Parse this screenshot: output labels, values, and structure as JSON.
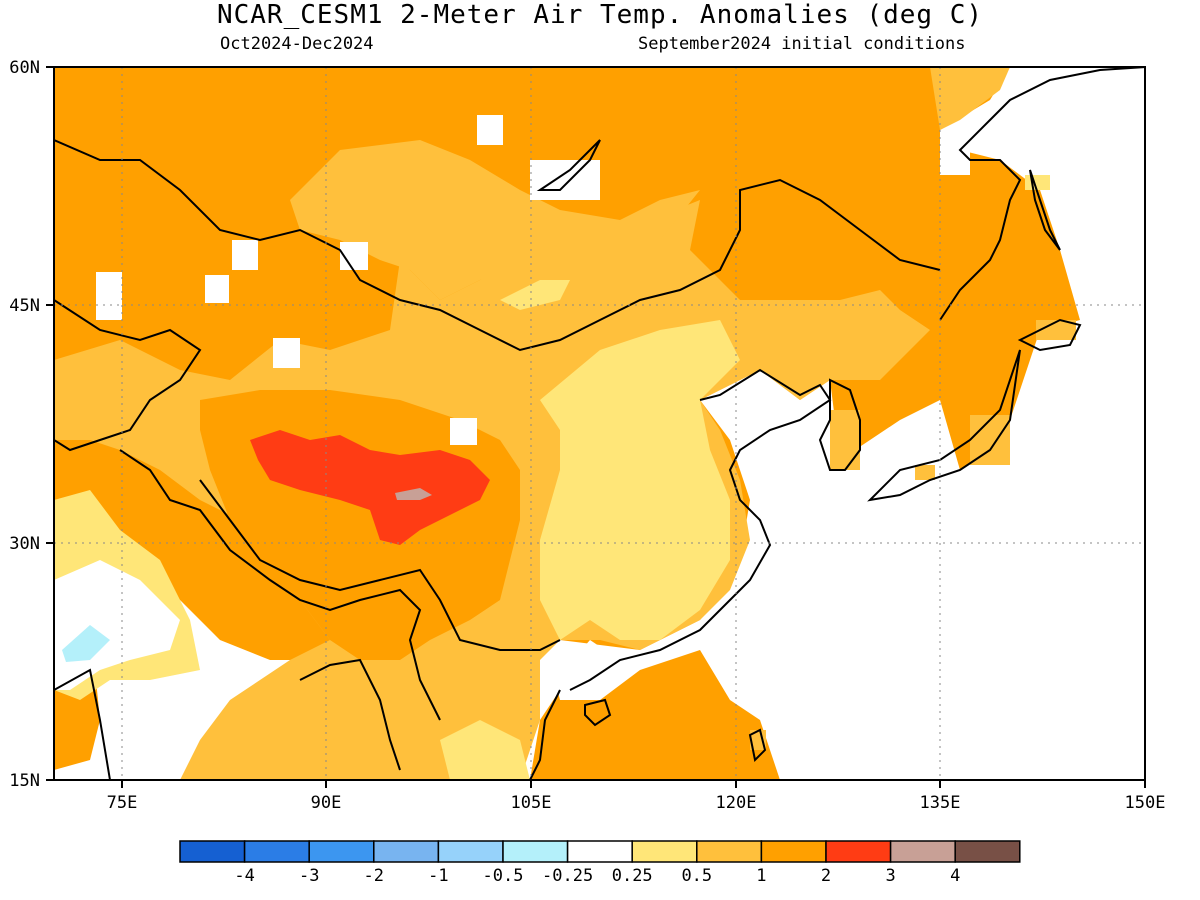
{
  "header": {
    "title": "NCAR_CESM1 2-Meter Air Temp. Anomalies (deg C)",
    "period": "Oct2024-Dec2024",
    "init": "September2024 initial conditions"
  },
  "map": {
    "lat_labels": [
      "60N",
      "45N",
      "30N",
      "15N"
    ],
    "lon_labels": [
      "75E",
      "90E",
      "105E",
      "120E",
      "135E",
      "150E"
    ],
    "extent": {
      "lon": [
        70,
        150
      ],
      "lat": [
        15,
        60
      ]
    },
    "grid": "dotted"
  },
  "colorbar": {
    "colors": [
      "#1560d2",
      "#2b7de6",
      "#3c96f0",
      "#78b4f0",
      "#96d2fa",
      "#b4f0fa",
      "#ffffff",
      "#ffe678",
      "#ffc03c",
      "#ffa000",
      "#ff3c14",
      "#c8a096",
      "#785046"
    ],
    "labels": [
      "-4",
      "-3",
      "-2",
      "-1",
      "-0.5",
      "-0.25",
      "0.25",
      "0.5",
      "1",
      "2",
      "3",
      "4"
    ]
  },
  "palette": {
    "c_05_1": "#ffc03c",
    "c_1_2": "#ffa000",
    "c_025_05": "#ffe678",
    "c_2_3": "#ff3c14",
    "c_3_4": "#c8a096",
    "c_neg": "#b4f0fa"
  }
}
